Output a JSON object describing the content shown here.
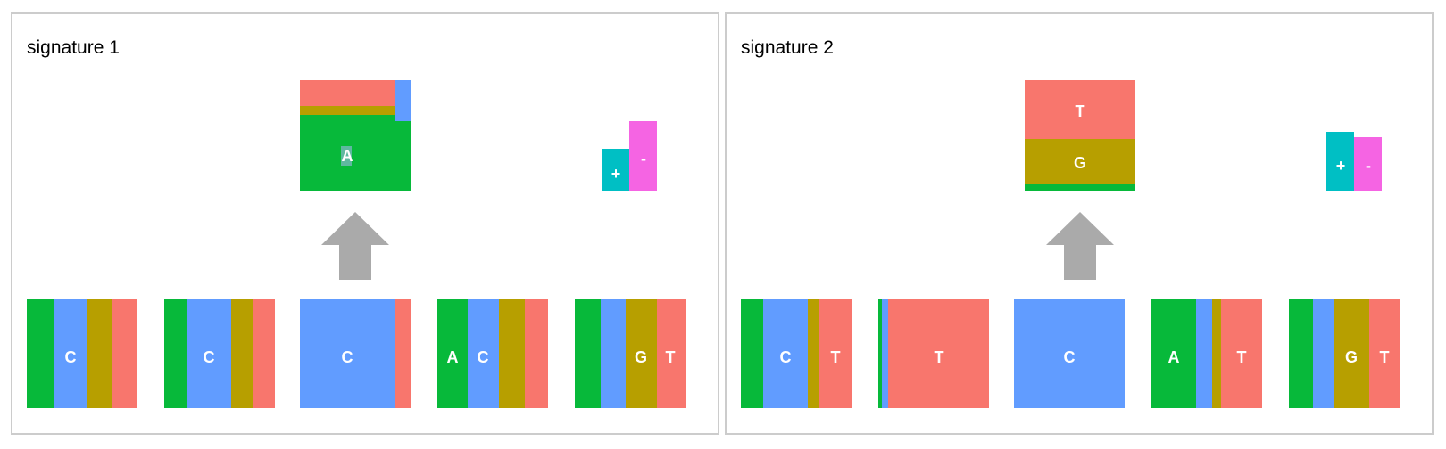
{
  "colors": {
    "A": "#07b93a",
    "C": "#619cff",
    "G": "#b79f00",
    "T": "#f8766d",
    "strand_plus": "#00bfc4",
    "strand_minus": "#f564e3",
    "arrow": "#aaaaaa",
    "border": "#cccccc"
  },
  "signatures": [
    {
      "title": "signature 1",
      "alt_base_label": "A",
      "alt_proportions": {
        "A": 0.69,
        "G": 0.08,
        "T": 0.23,
        "C": 0.01
      },
      "ref_base_label": "C",
      "flank_positions": [
        {
          "labels": [
            "C"
          ],
          "props": {
            "A": 0.25,
            "C": 0.3,
            "G": 0.22,
            "T": 0.23
          }
        },
        {
          "labels": [
            "C"
          ],
          "props": {
            "A": 0.2,
            "C": 0.4,
            "G": 0.2,
            "T": 0.2
          }
        },
        {
          "labels": [
            "C"
          ],
          "props": {
            "A": 0.0,
            "C": 0.85,
            "G": 0.0,
            "T": 0.15
          }
        },
        {
          "labels": [
            "A",
            "C"
          ],
          "props": {
            "A": 0.28,
            "C": 0.28,
            "G": 0.24,
            "T": 0.2
          }
        },
        {
          "labels": [
            "G",
            "T"
          ],
          "props": {
            "A": 0.23,
            "C": 0.23,
            "G": 0.28,
            "T": 0.26
          }
        }
      ],
      "strand": {
        "plus_label": "+",
        "minus_label": "-",
        "plus": 0.4,
        "minus": 0.6
      }
    },
    {
      "title": "signature 2",
      "alt_base_label_top": "T",
      "alt_base_label_mid": "G",
      "alt_proportions": {
        "A": 0.07,
        "G": 0.4,
        "T": 0.53,
        "C": 0.0
      },
      "ref_base_label": "C",
      "flank_positions": [
        {
          "labels": [
            "C",
            "T"
          ],
          "props": {
            "A": 0.2,
            "C": 0.4,
            "G": 0.1,
            "T": 0.3
          }
        },
        {
          "labels": [
            "T"
          ],
          "props": {
            "A": 0.03,
            "C": 0.06,
            "G": 0.0,
            "T": 0.91
          }
        },
        {
          "labels": [
            "C"
          ],
          "props": {
            "A": 0.0,
            "C": 1.0,
            "G": 0.0,
            "T": 0.0
          }
        },
        {
          "labels": [
            "A",
            "T"
          ],
          "props": {
            "A": 0.4,
            "C": 0.15,
            "G": 0.08,
            "T": 0.37
          }
        },
        {
          "labels": [
            "G",
            "T"
          ],
          "props": {
            "A": 0.22,
            "C": 0.18,
            "G": 0.32,
            "T": 0.28
          }
        }
      ],
      "strand": {
        "plus_label": "+",
        "minus_label": "-",
        "plus": 0.55,
        "minus": 0.5
      }
    }
  ]
}
